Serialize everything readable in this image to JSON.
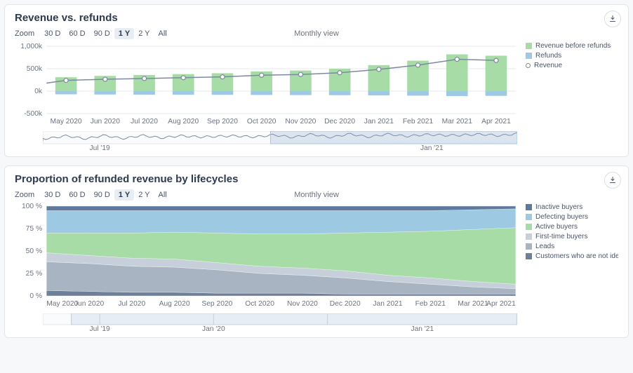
{
  "zoom": {
    "label": "Zoom",
    "options": [
      "30 D",
      "60 D",
      "90 D",
      "1 Y",
      "2 Y",
      "All"
    ],
    "active": "1 Y"
  },
  "monthly_view": "Monthly view",
  "chart1": {
    "title": "Revenue vs. refunds",
    "type": "bar+line",
    "months": [
      "May 2020",
      "Jun 2020",
      "Jul 2020",
      "Aug 2020",
      "Sep 2020",
      "Oct 2020",
      "Nov 2020",
      "Dec 2020",
      "Jan 2021",
      "Feb 2021",
      "Mar 2021",
      "Apr 2021"
    ],
    "yticks": [
      -500,
      0,
      500,
      1000
    ],
    "ytick_labels": [
      "-500k",
      "0k",
      "500k",
      "1,000k"
    ],
    "revenue_before_refunds": [
      310,
      340,
      360,
      380,
      400,
      440,
      460,
      500,
      580,
      680,
      820,
      790
    ],
    "refunds": [
      -70,
      -75,
      -78,
      -80,
      -82,
      -85,
      -88,
      -90,
      -95,
      -100,
      -110,
      -105
    ],
    "revenue_line": [
      240,
      265,
      282,
      300,
      318,
      355,
      372,
      410,
      485,
      580,
      710,
      685
    ],
    "colors": {
      "bar_pos": "#a7dca7",
      "bar_neg": "#9ec9e2",
      "line": "#7b8aa0",
      "marker_fill": "#ffffff",
      "grid": "#e6e9ed",
      "axis_text": "#6b7280",
      "nav_sel": "rgba(130,160,200,0.25)"
    },
    "legend": [
      {
        "label": "Revenue before refunds",
        "color": "#a7dca7",
        "type": "box"
      },
      {
        "label": "Refunds",
        "color": "#9ec9e2",
        "type": "box"
      },
      {
        "label": "Revenue",
        "color": "#ffffff",
        "type": "circle"
      }
    ],
    "nav_labels": [
      "Jul '19",
      "Jan '21"
    ]
  },
  "chart2": {
    "title": "Proportion of refunded revenue by lifecycles",
    "type": "stacked-area-100",
    "months": [
      "May 2020",
      "Jun 2020",
      "Jul 2020",
      "Aug 2020",
      "Sep 2020",
      "Oct 2020",
      "Nov 2020",
      "Dec 2020",
      "Jan 2021",
      "Feb 2021",
      "Mar 2021",
      "Apr 2021"
    ],
    "yticks": [
      0,
      25,
      50,
      75,
      100
    ],
    "ytick_labels": [
      "0 %",
      "25 %",
      "50 %",
      "75 %",
      "100 %"
    ],
    "series_order": [
      "not_identified",
      "leads",
      "first_time",
      "active",
      "defecting",
      "inactive"
    ],
    "series": {
      "not_identified": [
        6,
        5,
        4,
        4,
        3,
        3,
        3,
        2,
        2,
        2,
        2,
        2
      ],
      "leads": [
        32,
        31,
        29,
        28,
        26,
        22,
        20,
        18,
        14,
        11,
        8,
        6
      ],
      "first_time": [
        10,
        9,
        9,
        9,
        8,
        8,
        8,
        8,
        7,
        7,
        6,
        5
      ],
      "active": [
        22,
        25,
        28,
        30,
        33,
        36,
        38,
        42,
        48,
        52,
        58,
        63
      ],
      "defecting": [
        25,
        25,
        25,
        24,
        25,
        26,
        26,
        25,
        24,
        23,
        22,
        21
      ],
      "inactive": [
        5,
        5,
        5,
        5,
        5,
        5,
        5,
        5,
        5,
        5,
        4,
        3
      ]
    },
    "colors": {
      "not_identified": "#6e7f99",
      "leads": "#a8b4c2",
      "first_time": "#c7d0da",
      "active": "#a7dca7",
      "defecting": "#9ec9e2",
      "inactive": "#5d799c",
      "grid": "#e6e9ed"
    },
    "legend": [
      {
        "label": "Inactive buyers",
        "color": "#5d799c"
      },
      {
        "label": "Defecting buyers",
        "color": "#9ec9e2"
      },
      {
        "label": "Active buyers",
        "color": "#a7dca7"
      },
      {
        "label": "First-time buyers",
        "color": "#c7d0da"
      },
      {
        "label": "Leads",
        "color": "#a8b4c2"
      },
      {
        "label": "Customers who are not identifi",
        "color": "#6e7f99"
      }
    ],
    "nav_labels": [
      "Jul '19",
      "Jan '20",
      "Jan '21"
    ]
  }
}
